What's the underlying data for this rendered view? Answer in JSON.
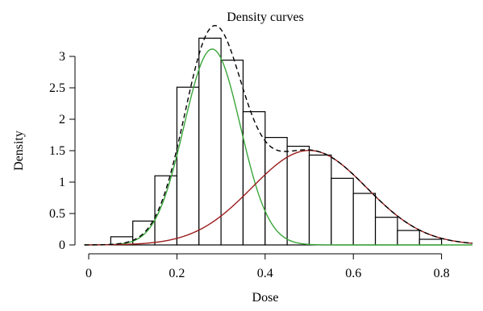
{
  "chart_data": {
    "type": "bar",
    "title": "Density curves",
    "xlabel": "Dose",
    "ylabel": "Density",
    "xlim": [
      0,
      0.9
    ],
    "ylim": [
      0,
      3.3
    ],
    "grid": false,
    "legend": "none",
    "x_ticks": [
      "0",
      "0.2",
      "0.4",
      "0.6",
      "0.8"
    ],
    "x_tick_values": [
      0,
      0.2,
      0.4,
      0.6,
      0.8
    ],
    "y_ticks": [
      "0",
      "0.5",
      "1",
      "1.5",
      "2",
      "2.5",
      "3"
    ],
    "y_tick_values": [
      0,
      0.5,
      1,
      1.5,
      2,
      2.5,
      3
    ],
    "histogram": {
      "bin_width": 0.05,
      "bin_starts": [
        0.05,
        0.1,
        0.15,
        0.2,
        0.25,
        0.3,
        0.35,
        0.4,
        0.45,
        0.5,
        0.55,
        0.6,
        0.65,
        0.7,
        0.75
      ],
      "values": [
        0.13,
        0.38,
        1.1,
        2.51,
        3.29,
        2.94,
        2.12,
        1.71,
        1.57,
        1.43,
        1.06,
        0.82,
        0.44,
        0.23,
        0.09
      ]
    },
    "curves": [
      {
        "type": "normal",
        "mean": 0.28,
        "sd": 0.064,
        "weight": 0.5,
        "color": "#3aa63a",
        "style": "solid"
      },
      {
        "type": "normal",
        "mean": 0.5,
        "sd": 0.13,
        "weight": 0.49,
        "color": "#9b1c1c",
        "style": "solid"
      },
      {
        "type": "mixture",
        "color": "#000000",
        "style": "dashed"
      }
    ]
  }
}
